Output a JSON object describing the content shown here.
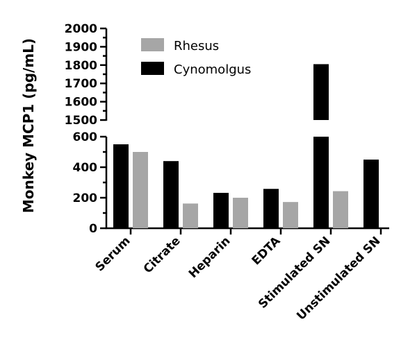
{
  "chart_data": {
    "type": "bar",
    "categories": [
      "Serum",
      "Citrate",
      "Heparin",
      "EDTA",
      "Stimulated SN",
      "Unstimulated SN"
    ],
    "series": [
      {
        "name": "Cynomolgus",
        "color": "#000000",
        "values": [
          550,
          440,
          232,
          258,
          1805,
          450
        ]
      },
      {
        "name": "Rhesus",
        "color": "#a6a6a6",
        "values": [
          500,
          162,
          200,
          172,
          243,
          0
        ]
      }
    ],
    "ylabel": "Monkey MCP1 (pg/mL)",
    "axis_break": {
      "lower_range": [
        0,
        600
      ],
      "upper_range": [
        1500,
        2000
      ],
      "lower_ticks": [
        0,
        200,
        400,
        600
      ],
      "upper_ticks": [
        1500,
        1600,
        1700,
        1800,
        1900,
        2000
      ]
    },
    "legend": {
      "placement": "top-left",
      "entries": [
        {
          "name": "Rhesus",
          "color": "#a6a6a6"
        },
        {
          "name": "Cynomolgus",
          "color": "#000000"
        }
      ]
    },
    "grid": false
  }
}
